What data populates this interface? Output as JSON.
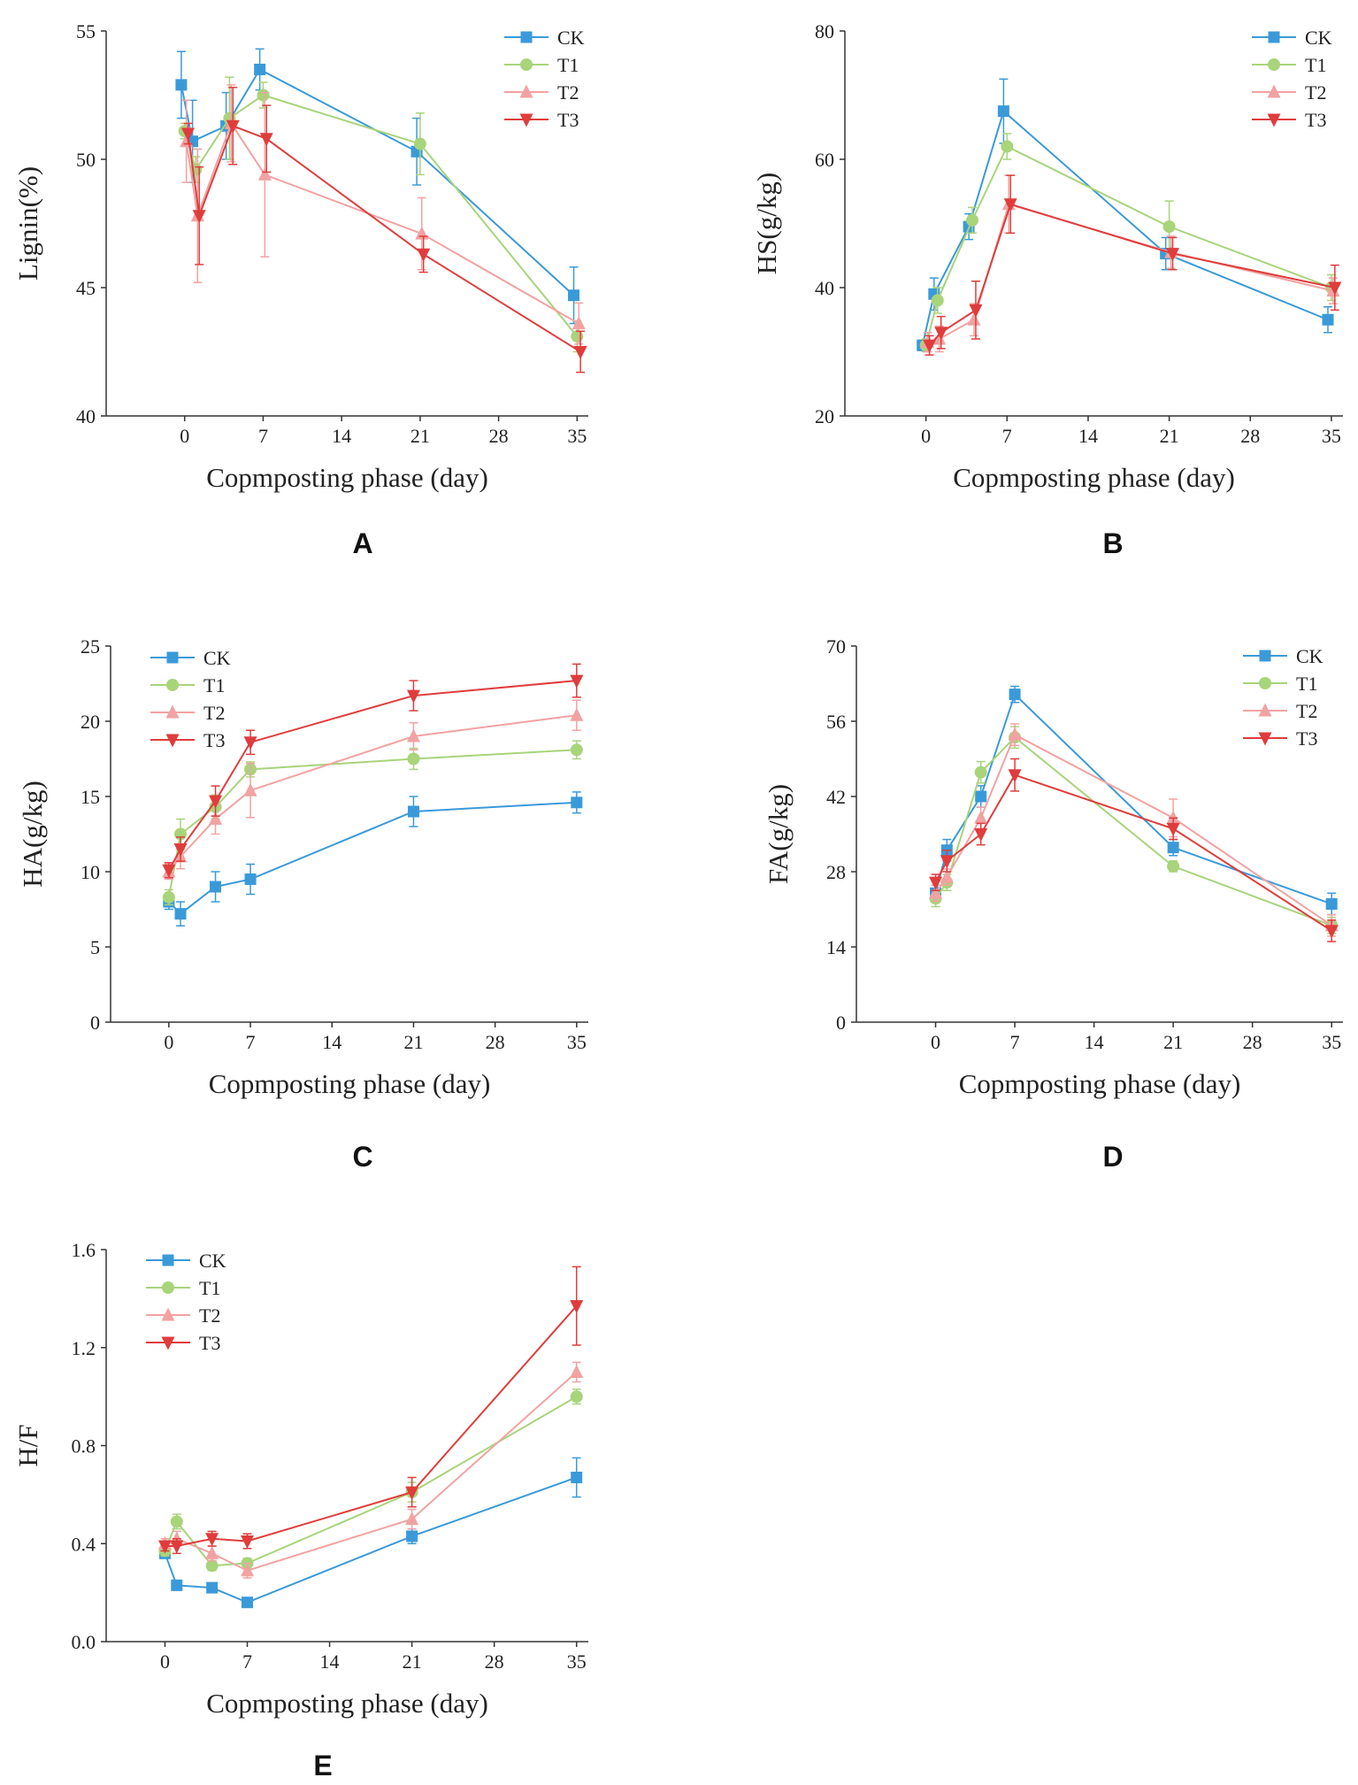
{
  "colors": {
    "CK": "#3a9ad9",
    "T1": "#a8d47a",
    "T2": "#f2a2a2",
    "T3": "#e03c3c"
  },
  "chart_data": [
    {
      "id": "A",
      "type": "line",
      "panel_label": "A",
      "xlabel": "Copmposting phase (day)",
      "ylabel": "Lignin(%)",
      "xlim": [
        -7,
        36
      ],
      "ylim": [
        40,
        55
      ],
      "xticks": [
        0,
        7,
        14,
        21,
        28,
        35
      ],
      "yticks": [
        40,
        45,
        50,
        55
      ],
      "legend_position": "top-right",
      "x": [
        0,
        1,
        4,
        7,
        21,
        35
      ],
      "series": [
        {
          "name": "CK",
          "marker": "square",
          "x_offset": -0.3,
          "values": [
            52.9,
            50.7,
            51.3,
            53.5,
            50.3,
            44.7
          ],
          "errors": [
            1.3,
            1.6,
            1.3,
            0.8,
            1.3,
            1.1
          ]
        },
        {
          "name": "T1",
          "marker": "circle",
          "x_offset": 0,
          "values": [
            51.1,
            49.6,
            51.6,
            52.5,
            50.6,
            43.1
          ],
          "errors": [
            0.3,
            0.5,
            1.6,
            0.5,
            1.2,
            0.6
          ]
        },
        {
          "name": "T2",
          "marker": "triangle-up",
          "x_offset": 0.15,
          "values": [
            50.7,
            47.8,
            51.4,
            49.4,
            47.1,
            43.6
          ],
          "errors": [
            1.6,
            2.6,
            1.5,
            3.2,
            1.4,
            0.8
          ]
        },
        {
          "name": "T3",
          "marker": "triangle-down",
          "x_offset": 0.3,
          "values": [
            51.0,
            47.8,
            51.3,
            50.8,
            46.3,
            42.5
          ],
          "errors": [
            0.4,
            1.9,
            1.5,
            1.3,
            0.7,
            0.8
          ]
        }
      ]
    },
    {
      "id": "B",
      "type": "line",
      "panel_label": "B",
      "xlabel": "Copmposting phase (day)",
      "ylabel": "HS(g/kg)",
      "xlim": [
        -7,
        36
      ],
      "ylim": [
        20,
        80
      ],
      "xticks": [
        0,
        7,
        14,
        21,
        28,
        35
      ],
      "yticks": [
        20,
        40,
        60,
        80
      ],
      "legend_position": "top-right",
      "x": [
        0,
        1,
        4,
        7,
        21,
        35
      ],
      "series": [
        {
          "name": "CK",
          "marker": "square",
          "x_offset": -0.3,
          "values": [
            31,
            39,
            49.5,
            67.5,
            45.3,
            35
          ],
          "errors": [
            0.8,
            2.5,
            2.0,
            5.0,
            2.5,
            2.0
          ]
        },
        {
          "name": "T1",
          "marker": "circle",
          "x_offset": 0,
          "values": [
            31,
            38,
            50.5,
            62,
            49.5,
            40
          ],
          "errors": [
            1.0,
            2.0,
            2.0,
            2.0,
            4.0,
            2.0
          ]
        },
        {
          "name": "T2",
          "marker": "triangle-up",
          "x_offset": 0.15,
          "values": [
            31.5,
            32,
            35,
            53,
            45.5,
            39.5
          ],
          "errors": [
            1.5,
            2.0,
            2.5,
            4.5,
            2.5,
            2.0
          ]
        },
        {
          "name": "T3",
          "marker": "triangle-down",
          "x_offset": 0.3,
          "values": [
            31,
            33,
            36.5,
            53,
            45.3,
            40
          ],
          "errors": [
            1.5,
            2.5,
            4.5,
            4.5,
            2.5,
            3.5
          ]
        }
      ]
    },
    {
      "id": "C",
      "type": "line",
      "panel_label": "C",
      "xlabel": "Copmposting phase (day)",
      "ylabel": "HA(g/kg)",
      "xlim": [
        -5,
        36
      ],
      "ylim": [
        0,
        25
      ],
      "xticks": [
        0,
        7,
        14,
        21,
        28,
        35
      ],
      "yticks": [
        0,
        5,
        10,
        15,
        20,
        25
      ],
      "legend_position": "top-left",
      "x": [
        0,
        1,
        4,
        7,
        21,
        35
      ],
      "series": [
        {
          "name": "CK",
          "marker": "square",
          "x_offset": 0,
          "values": [
            8.0,
            7.2,
            9.0,
            9.5,
            14.0,
            14.6
          ],
          "errors": [
            0.5,
            0.8,
            1.0,
            1.0,
            1.0,
            0.7
          ]
        },
        {
          "name": "T1",
          "marker": "circle",
          "x_offset": 0,
          "values": [
            8.3,
            12.5,
            14.3,
            16.8,
            17.5,
            18.1
          ],
          "errors": [
            0.5,
            1.0,
            0.8,
            0.5,
            0.7,
            0.6
          ]
        },
        {
          "name": "T2",
          "marker": "triangle-up",
          "x_offset": 0,
          "values": [
            10.0,
            11.0,
            13.5,
            15.4,
            19.0,
            20.4
          ],
          "errors": [
            0.5,
            0.8,
            1.0,
            1.8,
            0.9,
            1.0
          ]
        },
        {
          "name": "T3",
          "marker": "triangle-down",
          "x_offset": 0,
          "values": [
            10.1,
            11.5,
            14.7,
            18.6,
            21.7,
            22.7
          ],
          "errors": [
            0.5,
            0.8,
            1.0,
            0.8,
            1.0,
            1.1
          ]
        }
      ]
    },
    {
      "id": "D",
      "type": "line",
      "panel_label": "D",
      "xlabel": "Copmposting phase (day)",
      "ylabel": "FA(g/kg)",
      "xlim": [
        -7,
        36
      ],
      "ylim": [
        0,
        70
      ],
      "xticks": [
        0,
        7,
        14,
        21,
        28,
        35
      ],
      "yticks": [
        0,
        14,
        28,
        42,
        56,
        70
      ],
      "legend_position": "top-right",
      "x": [
        0,
        1,
        4,
        7,
        21,
        35
      ],
      "series": [
        {
          "name": "CK",
          "marker": "square",
          "x_offset": 0,
          "values": [
            24,
            32,
            42,
            61,
            32.5,
            22
          ],
          "errors": [
            1.5,
            2.0,
            2.0,
            1.5,
            1.5,
            2.0
          ]
        },
        {
          "name": "T1",
          "marker": "circle",
          "x_offset": 0,
          "values": [
            23,
            26,
            46.5,
            53,
            29,
            18
          ],
          "errors": [
            1.5,
            1.5,
            2.0,
            2.0,
            1.0,
            1.5
          ]
        },
        {
          "name": "T2",
          "marker": "triangle-up",
          "x_offset": 0,
          "values": [
            24,
            27,
            38,
            53.5,
            38,
            18
          ],
          "errors": [
            1.5,
            1.5,
            2.0,
            2.0,
            3.5,
            2.0
          ]
        },
        {
          "name": "T3",
          "marker": "triangle-down",
          "x_offset": 0,
          "values": [
            26,
            30,
            35,
            46,
            36,
            17
          ],
          "errors": [
            1.5,
            2.0,
            2.0,
            3.0,
            2.0,
            2.0
          ]
        }
      ]
    },
    {
      "id": "E",
      "type": "line",
      "panel_label": "E",
      "xlabel": "Copmposting phase (day)",
      "ylabel": "H/F",
      "xlim": [
        -5,
        36
      ],
      "ylim": [
        0.0,
        1.6
      ],
      "xticks": [
        0,
        7,
        14,
        21,
        28,
        35
      ],
      "yticks": [
        0.0,
        0.4,
        0.8,
        1.2,
        1.6
      ],
      "ytick_labels": [
        "0.0",
        "0.4",
        "0.8",
        "1.2",
        "1.6"
      ],
      "legend_position": "top-left",
      "x": [
        0,
        1,
        4,
        7,
        21,
        35
      ],
      "series": [
        {
          "name": "CK",
          "marker": "square",
          "x_offset": 0,
          "values": [
            0.36,
            0.23,
            0.22,
            0.16,
            0.43,
            0.67
          ],
          "errors": [
            0.02,
            0.02,
            0.02,
            0.01,
            0.03,
            0.08
          ]
        },
        {
          "name": "T1",
          "marker": "circle",
          "x_offset": 0,
          "values": [
            0.37,
            0.49,
            0.31,
            0.32,
            0.61,
            1.0
          ],
          "errors": [
            0.02,
            0.03,
            0.02,
            0.02,
            0.04,
            0.03
          ]
        },
        {
          "name": "T2",
          "marker": "triangle-up",
          "x_offset": 0,
          "values": [
            0.4,
            0.42,
            0.36,
            0.29,
            0.5,
            1.1
          ],
          "errors": [
            0.02,
            0.03,
            0.03,
            0.03,
            0.04,
            0.04
          ]
        },
        {
          "name": "T3",
          "marker": "triangle-down",
          "x_offset": 0,
          "values": [
            0.39,
            0.39,
            0.42,
            0.41,
            0.61,
            1.37
          ],
          "errors": [
            0.02,
            0.03,
            0.03,
            0.03,
            0.06,
            0.16
          ]
        }
      ]
    }
  ]
}
